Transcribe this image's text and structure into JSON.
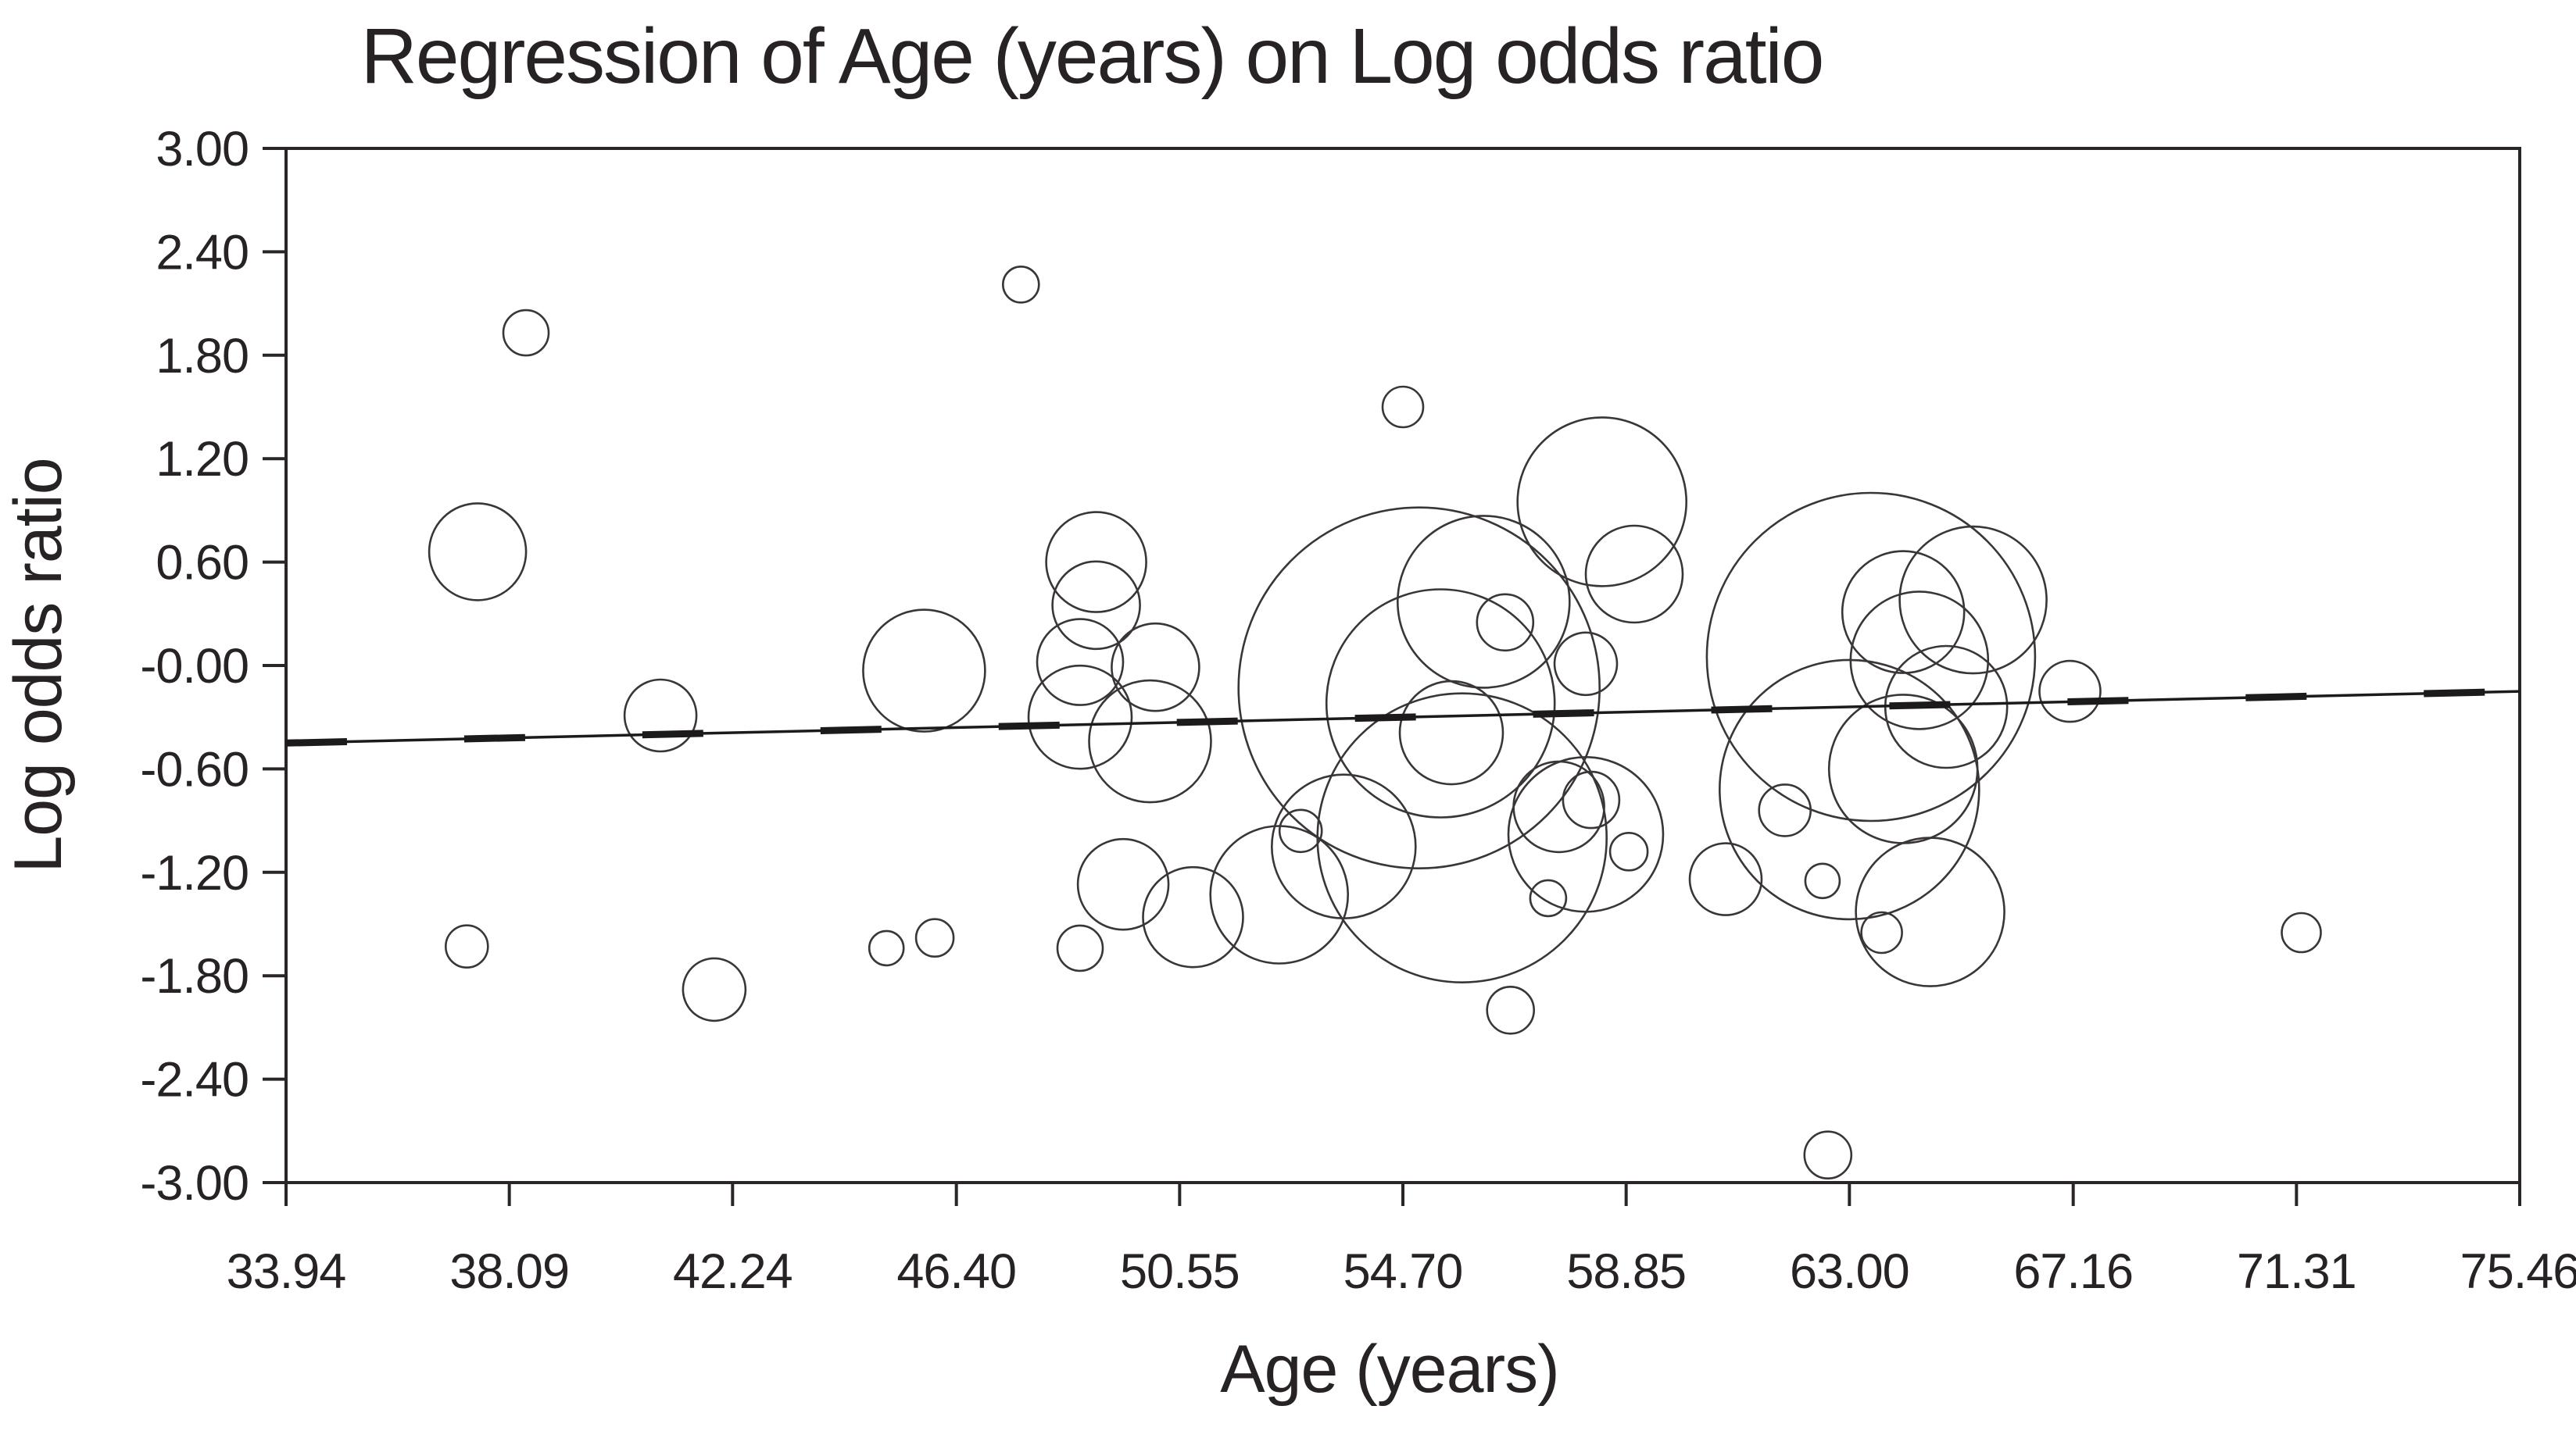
{
  "title": "Regression of Age (years) on Log odds ratio",
  "colors": {
    "background": "#ffffff",
    "frame": "#2a2627",
    "bubble_stroke": "#3a3637",
    "line": "#1c1a1b",
    "text": "#272223"
  },
  "chart_data": {
    "type": "scatter",
    "subtype": "bubble-meta-regression",
    "title": "Regression of Age (years) on Log odds ratio",
    "xlabel": "Age (years)",
    "ylabel": "Log odds ratio",
    "xlim": [
      33.94,
      75.46
    ],
    "ylim": [
      -3.0,
      3.0
    ],
    "grid": false,
    "legend": "none",
    "x_tick_labels": [
      "33.94",
      "38.09",
      "42.24",
      "46.40",
      "50.55",
      "54.70",
      "58.85",
      "63.00",
      "67.16",
      "71.31",
      "75.46"
    ],
    "y_tick_labels": [
      "3.00",
      "2.40",
      "1.80",
      "1.20",
      "0.60",
      "-0.00",
      "-0.60",
      "-1.20",
      "-1.80",
      "-2.40",
      "-3.00"
    ],
    "x_ticks": [
      33.94,
      38.09,
      42.24,
      46.4,
      50.55,
      54.7,
      58.85,
      63.0,
      67.16,
      71.31,
      75.46
    ],
    "y_ticks": [
      3.0,
      2.4,
      1.8,
      1.2,
      0.6,
      0.0,
      -0.6,
      -1.2,
      -1.8,
      -2.4,
      -3.0
    ],
    "regression_line": {
      "x": [
        33.94,
        75.46
      ],
      "y": [
        -0.45,
        -0.15
      ]
    },
    "points": [
      {
        "age": 38.4,
        "log_odds": 1.93,
        "r": 29
      },
      {
        "age": 37.5,
        "log_odds": 0.66,
        "r": 62
      },
      {
        "age": 37.3,
        "log_odds": -1.63,
        "r": 27
      },
      {
        "age": 40.9,
        "log_odds": -0.29,
        "r": 46
      },
      {
        "age": 41.9,
        "log_odds": -1.88,
        "r": 40
      },
      {
        "age": 45.8,
        "log_odds": -0.03,
        "r": 78
      },
      {
        "age": 45.1,
        "log_odds": -1.64,
        "r": 22
      },
      {
        "age": 46.0,
        "log_odds": -1.58,
        "r": 24
      },
      {
        "age": 47.6,
        "log_odds": 2.21,
        "r": 23
      },
      {
        "age": 49.0,
        "log_odds": 0.6,
        "r": 64
      },
      {
        "age": 49.0,
        "log_odds": 0.35,
        "r": 56
      },
      {
        "age": 48.7,
        "log_odds": 0.02,
        "r": 55
      },
      {
        "age": 48.7,
        "log_odds": -0.3,
        "r": 66
      },
      {
        "age": 50.1,
        "log_odds": -0.01,
        "r": 56
      },
      {
        "age": 50.0,
        "log_odds": -0.44,
        "r": 78
      },
      {
        "age": 48.7,
        "log_odds": -1.64,
        "r": 29
      },
      {
        "age": 49.5,
        "log_odds": -1.27,
        "r": 58
      },
      {
        "age": 50.8,
        "log_odds": -1.46,
        "r": 64
      },
      {
        "age": 52.4,
        "log_odds": -1.33,
        "r": 88
      },
      {
        "age": 53.6,
        "log_odds": -1.05,
        "r": 92
      },
      {
        "age": 52.8,
        "log_odds": -0.96,
        "r": 27
      },
      {
        "age": 55.8,
        "log_odds": -1.0,
        "r": 185
      },
      {
        "age": 55.0,
        "log_odds": -0.13,
        "r": 231
      },
      {
        "age": 55.4,
        "log_odds": -0.22,
        "r": 146
      },
      {
        "age": 56.2,
        "log_odds": 0.37,
        "r": 110
      },
      {
        "age": 55.6,
        "log_odds": -0.39,
        "r": 66
      },
      {
        "age": 56.6,
        "log_odds": 0.25,
        "r": 36
      },
      {
        "age": 54.7,
        "log_odds": 1.5,
        "r": 26
      },
      {
        "age": 58.4,
        "log_odds": 0.95,
        "r": 108
      },
      {
        "age": 59.0,
        "log_odds": 0.53,
        "r": 62
      },
      {
        "age": 58.1,
        "log_odds": 0.01,
        "r": 40
      },
      {
        "age": 58.2,
        "log_odds": -0.78,
        "r": 36
      },
      {
        "age": 57.6,
        "log_odds": -0.82,
        "r": 58
      },
      {
        "age": 58.1,
        "log_odds": -0.98,
        "r": 99
      },
      {
        "age": 56.7,
        "log_odds": -2.0,
        "r": 30
      },
      {
        "age": 57.4,
        "log_odds": -1.35,
        "r": 23
      },
      {
        "age": 58.9,
        "log_odds": -1.08,
        "r": 24
      },
      {
        "age": 63.4,
        "log_odds": 0.05,
        "r": 210
      },
      {
        "age": 63.0,
        "log_odds": -0.72,
        "r": 166
      },
      {
        "age": 64.0,
        "log_odds": -0.6,
        "r": 95
      },
      {
        "age": 64.3,
        "log_odds": 0.03,
        "r": 88
      },
      {
        "age": 64.0,
        "log_odds": 0.31,
        "r": 78
      },
      {
        "age": 64.8,
        "log_odds": -0.24,
        "r": 78
      },
      {
        "age": 65.3,
        "log_odds": 0.38,
        "r": 94
      },
      {
        "age": 64.5,
        "log_odds": -1.43,
        "r": 95
      },
      {
        "age": 60.7,
        "log_odds": -1.24,
        "r": 46
      },
      {
        "age": 61.8,
        "log_odds": -0.84,
        "r": 33
      },
      {
        "age": 62.5,
        "log_odds": -1.25,
        "r": 22
      },
      {
        "age": 63.6,
        "log_odds": -1.55,
        "r": 26
      },
      {
        "age": 62.6,
        "log_odds": -2.84,
        "r": 30
      },
      {
        "age": 67.1,
        "log_odds": -0.15,
        "r": 39
      },
      {
        "age": 71.4,
        "log_odds": -1.55,
        "r": 25
      }
    ]
  }
}
